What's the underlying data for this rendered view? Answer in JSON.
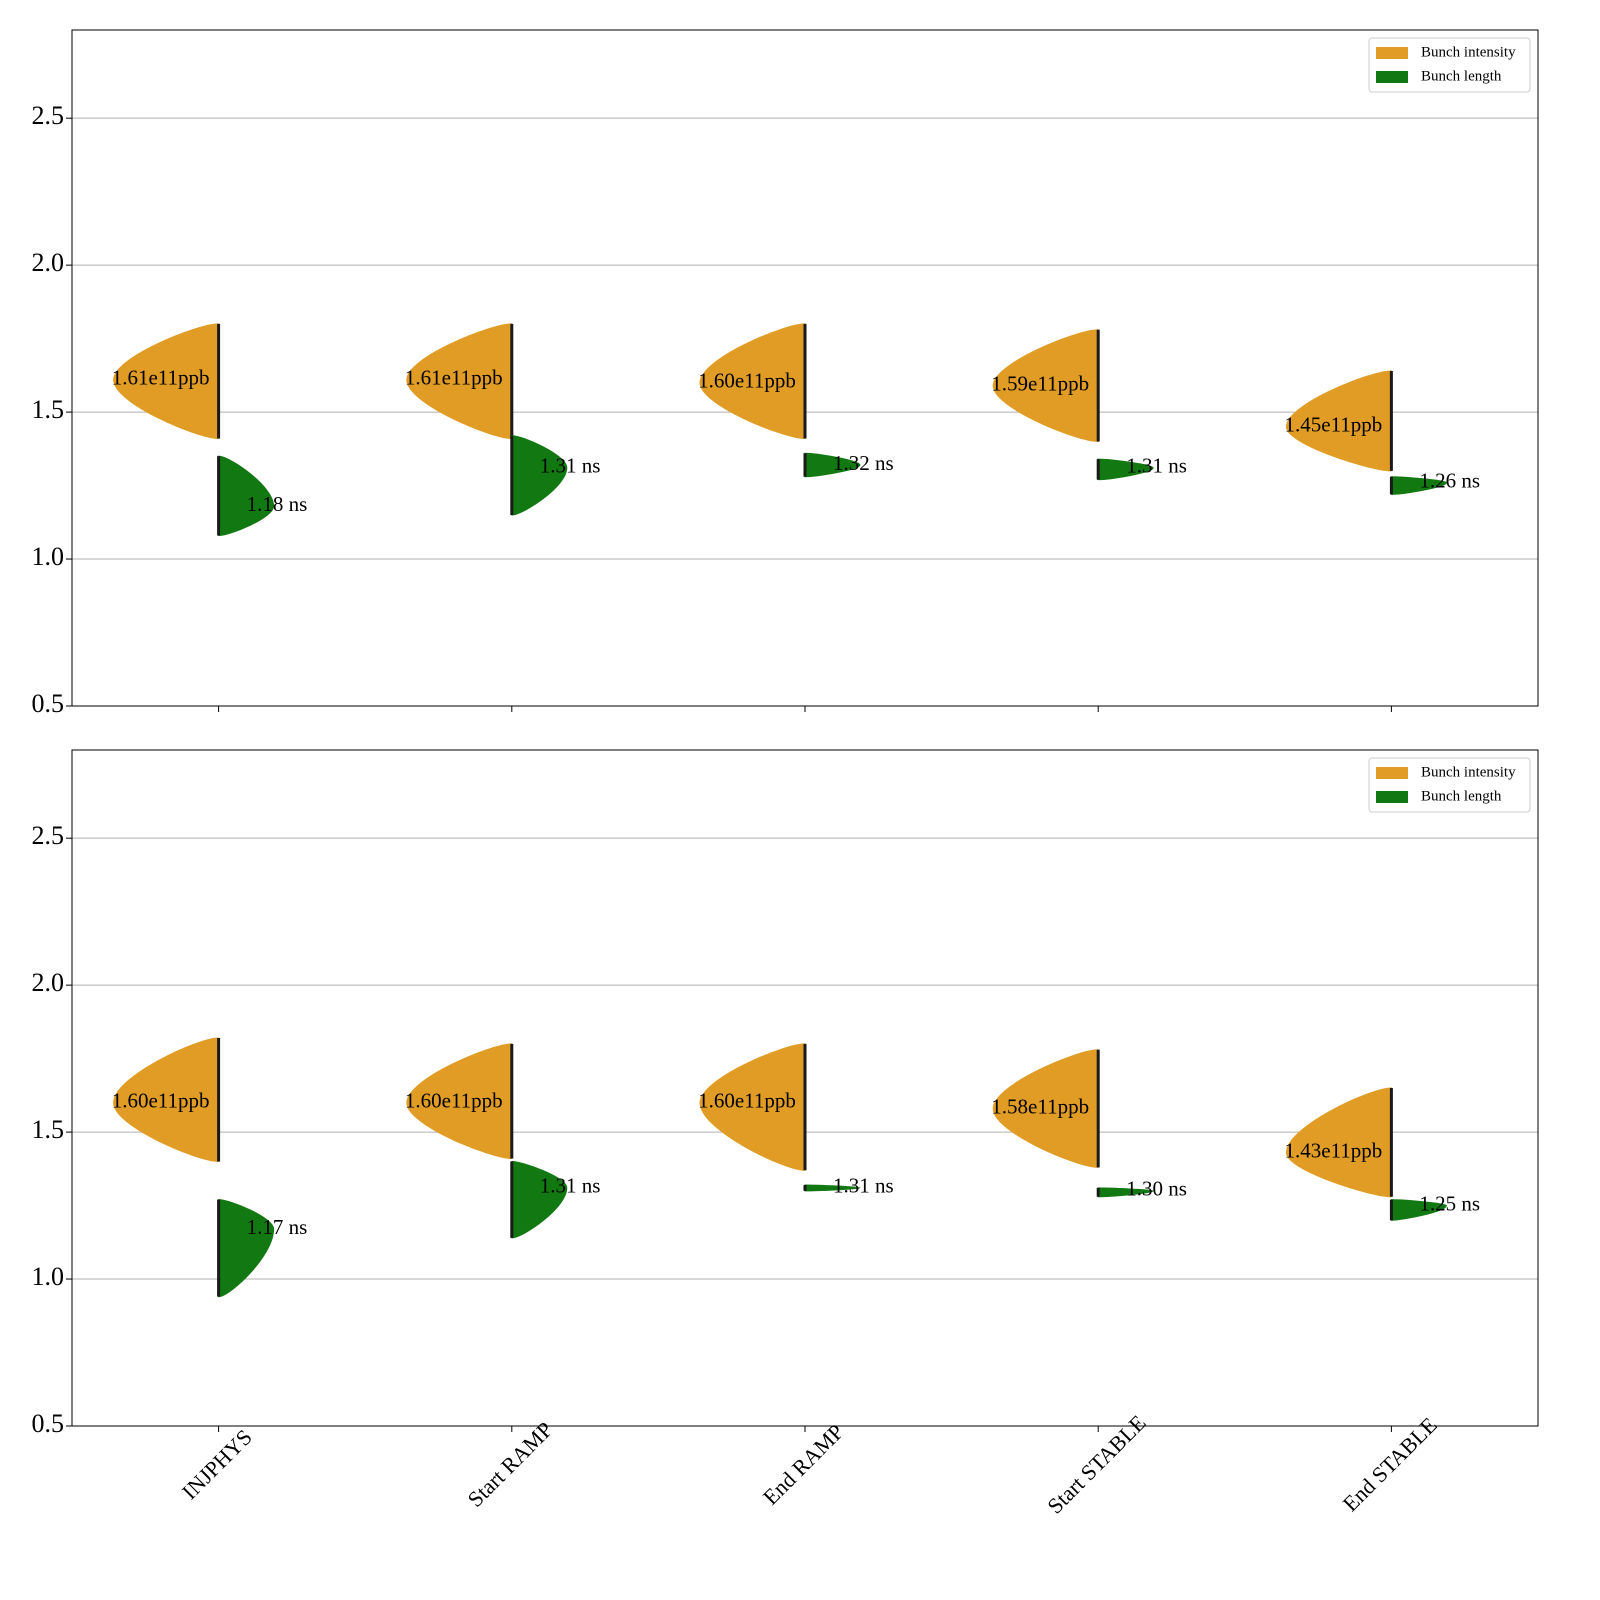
{
  "chart_data": [
    {
      "type": "violin",
      "categories": [
        null,
        null,
        null,
        null,
        null
      ],
      "series": [
        {
          "name": "Bunch intensity",
          "color": "#e09c24",
          "side": "left",
          "values": [
            1.61,
            1.61,
            1.6,
            1.59,
            1.45
          ],
          "value_labels": [
            "1.61e11ppb",
            "1.61e11ppb",
            "1.60e11ppb",
            "1.59e11ppb",
            "1.45e11ppb"
          ],
          "ranges": [
            [
              1.41,
              1.8
            ],
            [
              1.41,
              1.8
            ],
            [
              1.41,
              1.8
            ],
            [
              1.4,
              1.78
            ],
            [
              1.3,
              1.64
            ]
          ]
        },
        {
          "name": "Bunch length",
          "color": "#127812",
          "side": "right",
          "values": [
            1.18,
            1.31,
            1.32,
            1.31,
            1.26
          ],
          "value_labels": [
            "1.18 ns",
            "1.31 ns",
            "1.32 ns",
            "1.31 ns",
            "1.26 ns"
          ],
          "ranges": [
            [
              1.08,
              1.35
            ],
            [
              1.15,
              1.42
            ],
            [
              1.28,
              1.36
            ],
            [
              1.27,
              1.34
            ],
            [
              1.22,
              1.28
            ]
          ]
        }
      ],
      "ylim": [
        0.5,
        2.8
      ],
      "yticks": [
        0.5,
        {
          "value": 1,
          "label": "1.0"
        },
        1.5,
        {
          "value": 2,
          "label": "2.0"
        },
        2.5
      ],
      "grid": true,
      "legend": "upper-right"
    },
    {
      "type": "violin",
      "categories": [
        "INJPHYS",
        "Start RAMP",
        "End RAMP",
        "Start STABLE",
        "End STABLE"
      ],
      "series": [
        {
          "name": "Bunch intensity",
          "color": "#e09c24",
          "side": "left",
          "values": [
            1.6,
            1.6,
            1.6,
            1.58,
            1.43
          ],
          "value_labels": [
            "1.60e11ppb",
            "1.60e11ppb",
            "1.60e11ppb",
            "1.58e11ppb",
            "1.43e11ppb"
          ],
          "ranges": [
            [
              1.4,
              1.82
            ],
            [
              1.41,
              1.8
            ],
            [
              1.37,
              1.8
            ],
            [
              1.38,
              1.78
            ],
            [
              1.28,
              1.65
            ]
          ]
        },
        {
          "name": "Bunch length",
          "color": "#127812",
          "side": "right",
          "values": [
            1.17,
            1.31,
            1.31,
            1.3,
            1.25
          ],
          "value_labels": [
            "1.17 ns",
            "1.31 ns",
            "1.31 ns",
            "1.30 ns",
            "1.25 ns"
          ],
          "ranges": [
            [
              0.94,
              1.27
            ],
            [
              1.14,
              1.4
            ],
            [
              1.3,
              1.32
            ],
            [
              1.28,
              1.31
            ],
            [
              1.2,
              1.27
            ]
          ]
        }
      ],
      "ylim": [
        0.5,
        2.8
      ],
      "yticks": [
        0.5,
        {
          "value": 1,
          "label": "1.0"
        },
        1.5,
        {
          "value": 2,
          "label": "2.0"
        },
        2.5
      ],
      "grid": true,
      "legend": "upper-right"
    }
  ]
}
